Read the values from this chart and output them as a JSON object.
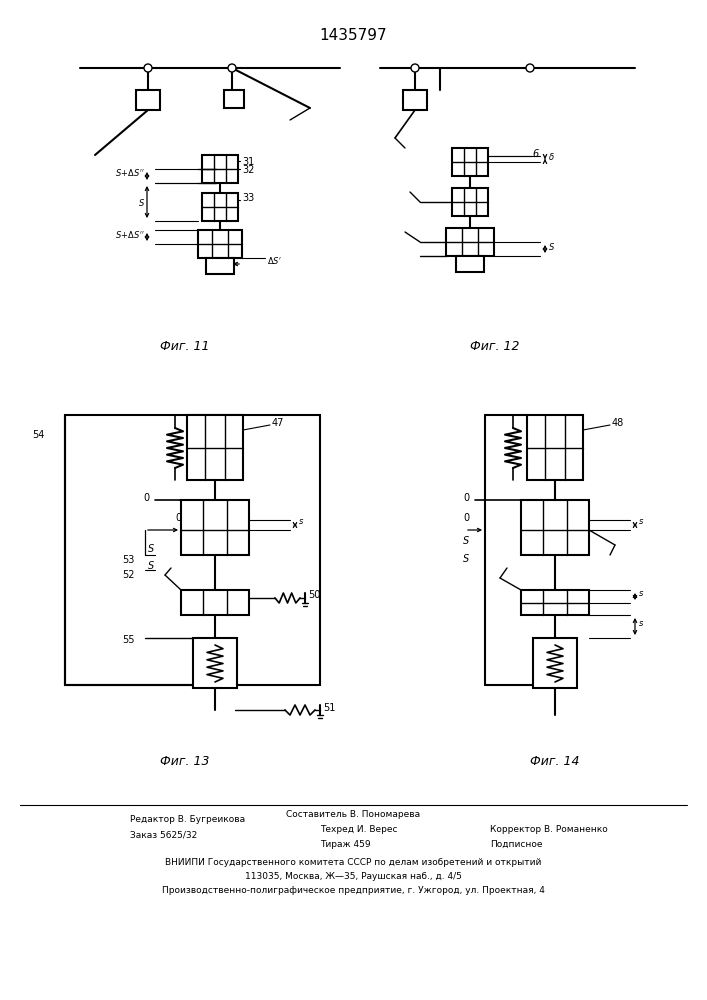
{
  "title": "1435797",
  "bg_color": "#ffffff",
  "line_color": "#000000",
  "fig11_label": "Фиг. 11",
  "fig12_label": "Фиг. 12",
  "fig13_label": "Фиг. 13",
  "fig14_label": "Фиг. 14",
  "footer": {
    "line1_left": "Редактор В. Бугреикова",
    "line1_center": "Составитель В. Пономарева",
    "line2_left": "Заказ 5625/32",
    "line2_center": "Техред И. Верес",
    "line2_right": "Корректор В. Романенко",
    "line3_center": "Тираж 459",
    "line3_right": "Подписное",
    "line4": "ВНИИПИ Государственного комитета СССР по делам изобретений и открытий",
    "line5": "113035, Москва, Ж—35, Раушская наб., д. 4/5",
    "line6": "Производственно-полиграфическое предприятие, г. Ужгород, ул. Проектная, 4"
  }
}
